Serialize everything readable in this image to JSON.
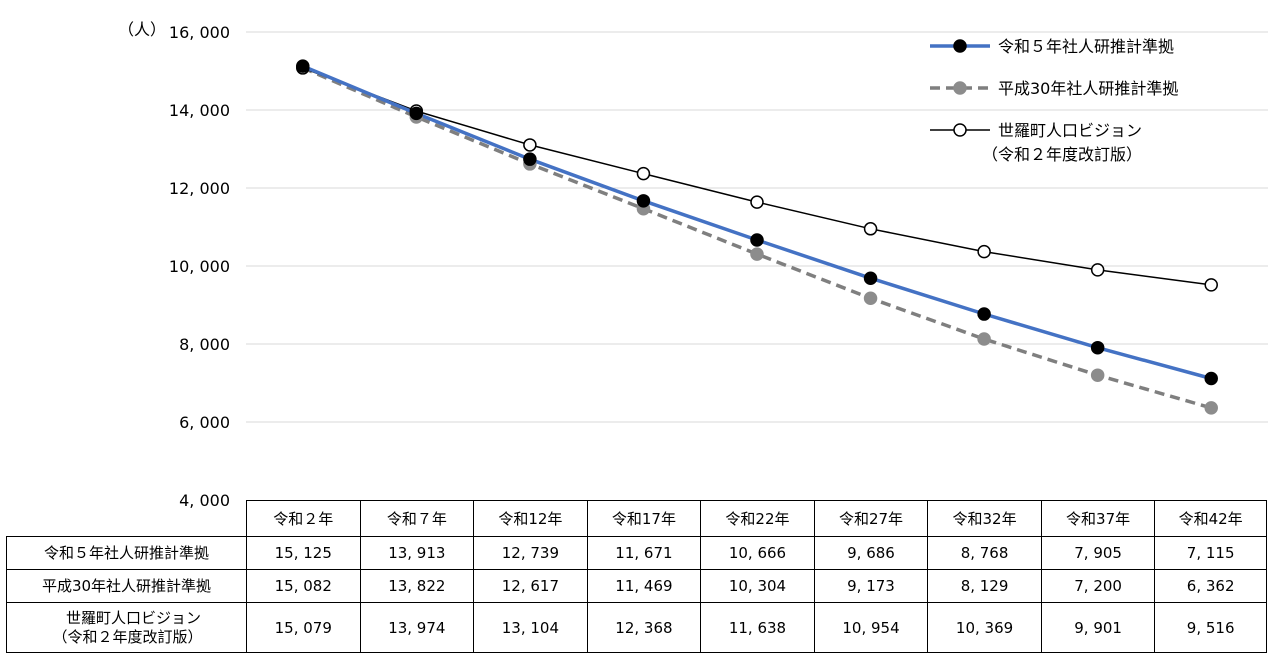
{
  "unit_label": "（人）",
  "chart_data": {
    "type": "line",
    "title": "",
    "xlabel": "",
    "ylabel": "（人）",
    "ylim": [
      4000,
      16000
    ],
    "y_ticks": [
      "4, 000",
      "6, 000",
      "8, 000",
      "10, 000",
      "12, 000",
      "14, 000",
      "16, 000"
    ],
    "y_tick_values": [
      4000,
      6000,
      8000,
      10000,
      12000,
      14000,
      16000
    ],
    "grid": true,
    "legend_position": "top-right",
    "categories": [
      "令和２年",
      "令和７年",
      "令和12年",
      "令和17年",
      "令和22年",
      "令和27年",
      "令和32年",
      "令和37年",
      "令和42年"
    ],
    "series": [
      {
        "name": "令和５年社人研推計準拠",
        "legend_lines": [
          "令和５年社人研推計準拠"
        ],
        "row_label_lines": [
          "令和５年社人研推計準拠"
        ],
        "values": [
          15125,
          13913,
          12739,
          11671,
          10666,
          9686,
          8768,
          7905,
          7115
        ],
        "display_values": [
          "15, 125",
          "13, 913",
          "12, 739",
          "11, 671",
          "10, 666",
          "9, 686",
          "8, 768",
          "7, 905",
          "7, 115"
        ],
        "line_color": "#4472c4",
        "marker_fill": "#000000",
        "marker_stroke": "#000000",
        "line_style": "solid"
      },
      {
        "name": "平成30年社人研推計準拠",
        "legend_lines": [
          "平成30年社人研推計準拠"
        ],
        "row_label_lines": [
          "平成30年社人研推計準拠"
        ],
        "values": [
          15082,
          13822,
          12617,
          11469,
          10304,
          9173,
          8129,
          7200,
          6362
        ],
        "display_values": [
          "15, 082",
          "13, 822",
          "12, 617",
          "11, 469",
          "10, 304",
          "9, 173",
          "8, 129",
          "7, 200",
          "6, 362"
        ],
        "line_color": "#7f7f7f",
        "marker_fill": "#8c8c8c",
        "marker_stroke": "#8c8c8c",
        "line_style": "dashed"
      },
      {
        "name": "世羅町人口ビジョン（令和２年度改訂版）",
        "legend_lines": [
          "世羅町人口ビジョン",
          "（令和２年度改訂版）"
        ],
        "row_label_lines": [
          "世羅町人口ビジョン",
          "（令和２年度改訂版）"
        ],
        "values": [
          15079,
          13974,
          13104,
          12368,
          11638,
          10954,
          10369,
          9901,
          9516
        ],
        "display_values": [
          "15, 079",
          "13, 974",
          "13, 104",
          "12, 368",
          "11, 638",
          "10, 954",
          "10, 369",
          "9, 901",
          "9, 516"
        ],
        "line_color": "#000000",
        "marker_fill": "#ffffff",
        "marker_stroke": "#000000",
        "line_style": "solid"
      }
    ]
  }
}
